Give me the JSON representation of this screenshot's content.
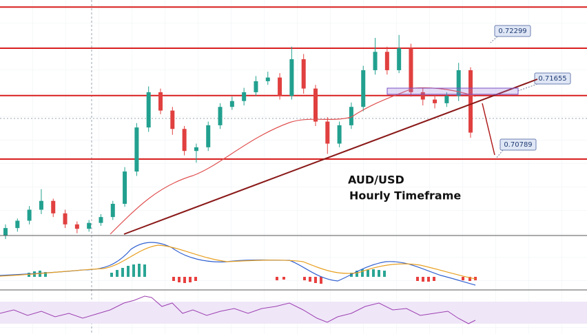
{
  "chart_data": {
    "type": "candlestick",
    "title": "AUD/USD",
    "subtitle": "Hourly Timeframe",
    "open": [
      0.6975,
      0.6985,
      0.6995,
      0.701,
      0.7022,
      0.7005,
      0.699,
      0.6984,
      0.6992,
      0.7,
      0.7018,
      0.7062,
      0.7122,
      0.717,
      0.7145,
      0.712,
      0.709,
      0.7095,
      0.7125,
      0.715,
      0.7158,
      0.717,
      0.7185,
      0.719,
      0.7165,
      0.7215,
      0.7175,
      0.713,
      0.71,
      0.7125,
      0.715,
      0.72,
      0.7225,
      0.72,
      0.723,
      0.717,
      0.716,
      0.7155,
      0.7165,
      0.72
    ],
    "high": [
      0.699,
      0.6998,
      0.7015,
      0.7038,
      0.7025,
      0.701,
      0.6994,
      0.6996,
      0.7004,
      0.7022,
      0.7068,
      0.7128,
      0.7178,
      0.7175,
      0.715,
      0.7124,
      0.71,
      0.713,
      0.7155,
      0.7164,
      0.7176,
      0.7192,
      0.7198,
      0.7196,
      0.7232,
      0.7222,
      0.718,
      0.7136,
      0.713,
      0.7156,
      0.7206,
      0.7244,
      0.7232,
      0.7248,
      0.7236,
      0.7176,
      0.7166,
      0.717,
      0.721,
      0.7204
    ],
    "low": [
      0.697,
      0.698,
      0.699,
      0.7004,
      0.7,
      0.6985,
      0.6978,
      0.698,
      0.6988,
      0.6996,
      0.7014,
      0.7056,
      0.7116,
      0.714,
      0.7112,
      0.7084,
      0.7074,
      0.709,
      0.712,
      0.7146,
      0.7152,
      0.7165,
      0.718,
      0.716,
      0.716,
      0.7168,
      0.7124,
      0.7086,
      0.7095,
      0.712,
      0.7144,
      0.7194,
      0.7194,
      0.7196,
      0.7164,
      0.7152,
      0.7148,
      0.715,
      0.7158,
      0.7108
    ],
    "close": [
      0.6985,
      0.6995,
      0.701,
      0.7022,
      0.7005,
      0.699,
      0.6984,
      0.6992,
      0.7,
      0.7018,
      0.7062,
      0.7122,
      0.717,
      0.7145,
      0.712,
      0.709,
      0.7095,
      0.7125,
      0.715,
      0.7158,
      0.717,
      0.7185,
      0.719,
      0.7165,
      0.7215,
      0.7175,
      0.713,
      0.71,
      0.7125,
      0.715,
      0.72,
      0.7225,
      0.72,
      0.723,
      0.717,
      0.716,
      0.7155,
      0.7165,
      0.72,
      0.7115
    ],
    "ylim": [
      0.69767,
      0.72956
    ],
    "levels": [
      0.7286,
      0.72299,
      0.71655,
      0.70789
    ],
    "colors": {
      "up": "#22a08f",
      "down": "#e0403f",
      "level": "#d81e1e"
    }
  }
}
